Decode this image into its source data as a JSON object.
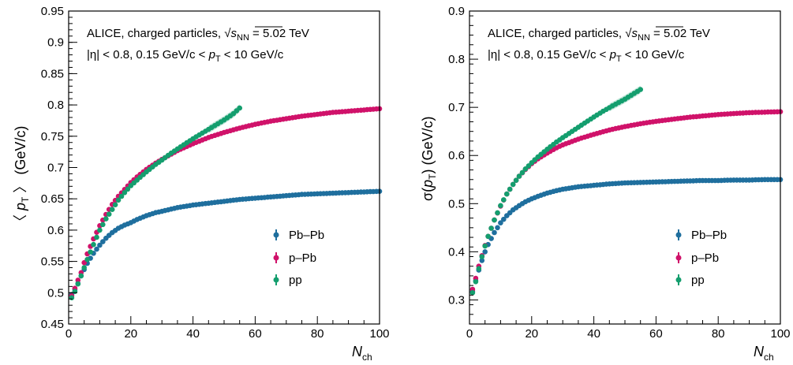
{
  "figure": {
    "panels": [
      {
        "id": "mean-pt",
        "ylabel_left": "〈 ",
        "ylabel_var": "p",
        "ylabel_sub": "T",
        "ylabel_right": " 〉 (GeV/c)",
        "xlabel_var": "N",
        "xlabel_sub": "ch",
        "annotation_line1_prefix": "ALICE, charged particles, ",
        "annotation_sqrt": "√",
        "annotation_s": "s",
        "annotation_nn": "NN",
        "annotation_line1_suffix": " = 5.02 TeV",
        "annotation_line2_a": "|η| < 0.8, 0.15 GeV/c < ",
        "annotation_line2_pt": "p",
        "annotation_line2_sub": "T",
        "annotation_line2_b": " < 10 GeV/c",
        "legend": [
          "Pb–Pb",
          "p–Pb",
          "pp"
        ]
      },
      {
        "id": "sigma-pt",
        "ylabel_left": "σ(",
        "ylabel_var": "p",
        "ylabel_sub": "T",
        "ylabel_right": ") (GeV/c)",
        "xlabel_var": "N",
        "xlabel_sub": "ch",
        "annotation_line1_prefix": "ALICE, charged particles, ",
        "annotation_sqrt": "√",
        "annotation_s": "s",
        "annotation_nn": "NN",
        "annotation_line1_suffix": " = 5.02 TeV",
        "annotation_line2_a": "|η| < 0.8, 0.15 GeV/c < ",
        "annotation_line2_pt": "p",
        "annotation_line2_sub": "T",
        "annotation_line2_b": " < 10 GeV/c",
        "legend": [
          "Pb–Pb",
          "p–Pb",
          "pp"
        ]
      }
    ]
  },
  "colors": {
    "pbpb": "#1f6f9e",
    "ppb": "#d0126a",
    "pp": "#149e6e"
  },
  "chart_data": [
    {
      "type": "scatter",
      "xlim": [
        0,
        100
      ],
      "ylim": [
        0.45,
        0.95
      ],
      "x_ticks": [
        0,
        20,
        40,
        60,
        80,
        100
      ],
      "x_tick_labels": [
        "0",
        "20",
        "40",
        "60",
        "80",
        "100"
      ],
      "y_ticks": [
        0.45,
        0.5,
        0.55,
        0.6,
        0.65,
        0.7,
        0.75,
        0.8,
        0.85,
        0.9,
        0.95
      ],
      "y_tick_labels": [
        "0.45",
        "0.5",
        "0.55",
        "0.6",
        "0.65",
        "0.7",
        "0.75",
        "0.8",
        "0.85",
        "0.9",
        "0.95"
      ],
      "legend_position": "lower-right",
      "series": [
        {
          "name": "Pb–Pb",
          "key": "pbpb",
          "x": [
            1,
            2,
            3,
            4,
            5,
            6,
            8,
            10,
            12,
            14,
            16,
            18,
            20,
            22,
            25,
            28,
            30,
            35,
            40,
            45,
            50,
            55,
            60,
            65,
            70,
            75,
            80,
            85,
            90,
            95,
            100
          ],
          "y": [
            0.497,
            0.505,
            0.515,
            0.527,
            0.537,
            0.547,
            0.563,
            0.576,
            0.587,
            0.596,
            0.603,
            0.608,
            0.612,
            0.617,
            0.623,
            0.628,
            0.63,
            0.636,
            0.64,
            0.643,
            0.646,
            0.649,
            0.651,
            0.653,
            0.655,
            0.657,
            0.658,
            0.659,
            0.66,
            0.661,
            0.662
          ]
        },
        {
          "name": "p–Pb",
          "key": "ppb",
          "x": [
            1,
            2,
            3,
            4,
            5,
            6,
            8,
            10,
            12,
            14,
            16,
            18,
            20,
            22,
            25,
            28,
            30,
            35,
            40,
            45,
            50,
            55,
            60,
            65,
            70,
            75,
            80,
            85,
            90,
            95,
            100
          ],
          "y": [
            0.495,
            0.507,
            0.52,
            0.532,
            0.548,
            0.562,
            0.586,
            0.607,
            0.625,
            0.641,
            0.654,
            0.665,
            0.676,
            0.685,
            0.697,
            0.707,
            0.713,
            0.727,
            0.738,
            0.748,
            0.756,
            0.763,
            0.769,
            0.774,
            0.778,
            0.782,
            0.785,
            0.788,
            0.79,
            0.792,
            0.794
          ]
        },
        {
          "name": "pp",
          "key": "pp",
          "x": [
            1,
            2,
            3,
            4,
            5,
            6,
            8,
            10,
            12,
            14,
            16,
            18,
            20,
            22,
            25,
            28,
            30,
            33,
            36,
            40,
            43,
            46,
            50,
            53,
            55
          ],
          "y": [
            0.492,
            0.502,
            0.514,
            0.527,
            0.54,
            0.553,
            0.577,
            0.6,
            0.618,
            0.633,
            0.648,
            0.66,
            0.671,
            0.68,
            0.693,
            0.705,
            0.712,
            0.723,
            0.733,
            0.746,
            0.755,
            0.764,
            0.776,
            0.786,
            0.795
          ]
        }
      ]
    },
    {
      "type": "scatter",
      "xlim": [
        0,
        100
      ],
      "ylim": [
        0.25,
        0.9
      ],
      "x_ticks": [
        0,
        20,
        40,
        60,
        80,
        100
      ],
      "x_tick_labels": [
        "0",
        "20",
        "40",
        "60",
        "80",
        "100"
      ],
      "y_ticks": [
        0.3,
        0.4,
        0.5,
        0.6,
        0.7,
        0.8,
        0.9
      ],
      "y_tick_labels": [
        "0.3",
        "0.4",
        "0.5",
        "0.6",
        "0.7",
        "0.8",
        "0.9"
      ],
      "legend_position": "lower-right",
      "series": [
        {
          "name": "Pb–Pb",
          "key": "pbpb",
          "x": [
            1,
            2,
            3,
            4,
            5,
            6,
            8,
            10,
            12,
            14,
            16,
            18,
            20,
            22,
            25,
            28,
            30,
            35,
            40,
            45,
            50,
            55,
            60,
            65,
            70,
            75,
            80,
            85,
            90,
            95,
            100
          ],
          "y": [
            0.318,
            0.34,
            0.362,
            0.382,
            0.4,
            0.415,
            0.44,
            0.46,
            0.475,
            0.487,
            0.496,
            0.504,
            0.51,
            0.515,
            0.522,
            0.527,
            0.53,
            0.535,
            0.538,
            0.541,
            0.543,
            0.544,
            0.545,
            0.546,
            0.547,
            0.548,
            0.548,
            0.549,
            0.549,
            0.55,
            0.55
          ]
        },
        {
          "name": "p–Pb",
          "key": "ppb",
          "x": [
            1,
            2,
            3,
            4,
            5,
            6,
            8,
            10,
            12,
            14,
            16,
            18,
            20,
            22,
            25,
            28,
            30,
            35,
            40,
            45,
            50,
            55,
            60,
            65,
            70,
            75,
            80,
            85,
            90,
            95,
            100
          ],
          "y": [
            0.322,
            0.345,
            0.37,
            0.392,
            0.413,
            0.432,
            0.466,
            0.495,
            0.52,
            0.54,
            0.557,
            0.571,
            0.583,
            0.593,
            0.605,
            0.616,
            0.622,
            0.634,
            0.644,
            0.653,
            0.66,
            0.666,
            0.671,
            0.675,
            0.679,
            0.682,
            0.685,
            0.687,
            0.689,
            0.69,
            0.691
          ]
        },
        {
          "name": "pp",
          "key": "pp",
          "x": [
            1,
            2,
            3,
            4,
            5,
            6,
            8,
            10,
            12,
            14,
            16,
            18,
            20,
            22,
            25,
            28,
            30,
            33,
            36,
            40,
            43,
            46,
            50,
            53,
            55
          ],
          "y": [
            0.315,
            0.338,
            0.365,
            0.39,
            0.412,
            0.432,
            0.466,
            0.496,
            0.52,
            0.54,
            0.557,
            0.572,
            0.585,
            0.597,
            0.613,
            0.628,
            0.637,
            0.65,
            0.663,
            0.68,
            0.692,
            0.703,
            0.717,
            0.729,
            0.737
          ]
        }
      ]
    }
  ]
}
